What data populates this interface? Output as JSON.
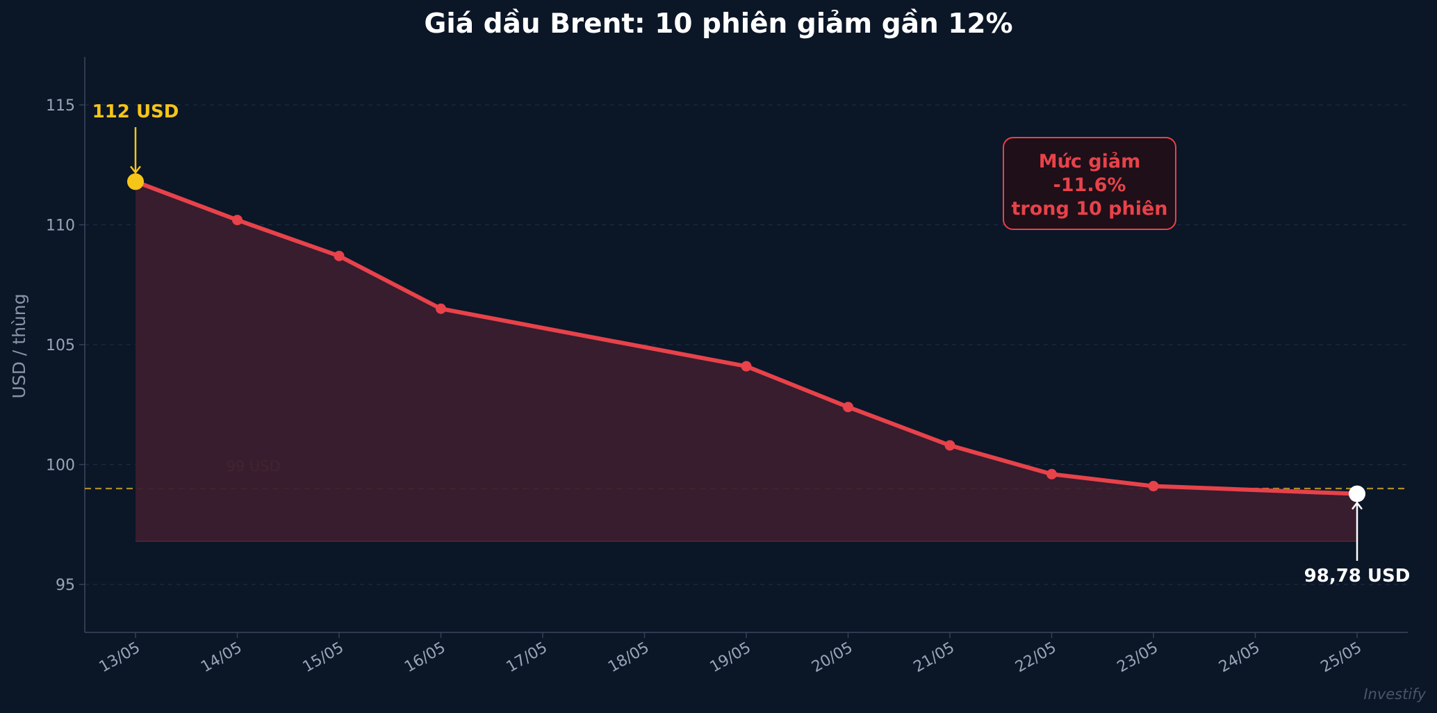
{
  "chart_data": {
    "type": "line",
    "title": "Giá dầu Brent: 10 phiên giảm gần 12%",
    "ylabel": "USD / thùng",
    "xlabel": "",
    "ylim": [
      93,
      117
    ],
    "yticks": [
      95,
      100,
      105,
      110,
      115
    ],
    "x_ticks": [
      "13/05",
      "14/05",
      "15/05",
      "16/05",
      "17/05",
      "18/05",
      "19/05",
      "20/05",
      "21/05",
      "22/05",
      "23/05",
      "24/05",
      "25/05"
    ],
    "x": [
      "13/05",
      "14/05",
      "15/05",
      "16/05",
      "19/05",
      "20/05",
      "21/05",
      "22/05",
      "23/05",
      "25/05"
    ],
    "series": [
      {
        "values": [
          111.8,
          110.2,
          108.7,
          106.5,
          104.1,
          102.4,
          100.8,
          99.6,
          99.1,
          98.78
        ],
        "color": "#e8424a",
        "fill_color": "#3a1e2e",
        "fill_base": 96.8
      }
    ],
    "reference_line": {
      "value": 99,
      "label": "99 USD",
      "color": "#c9a227"
    },
    "annotations": {
      "start": {
        "text": "112 USD",
        "x": "13/05",
        "y": 111.8,
        "color": "#f5c518"
      },
      "end": {
        "text": "98,78 USD",
        "x": "25/05",
        "y": 98.78,
        "color": "#ffffff"
      },
      "box": {
        "lines": [
          "Mức giảm",
          "-11.6%",
          "trong 10 phiên"
        ],
        "text_color": "#e8424a",
        "border_color": "#e8424a",
        "fill_color": "#1e0f18"
      }
    },
    "grid": true,
    "grid_axis": "y",
    "legend": false,
    "watermark": "Investify"
  },
  "colors": {
    "background": "#0b1627",
    "axis": "#34405a",
    "grid": "#1f2b40",
    "tick_text": "#9aa6b8"
  }
}
